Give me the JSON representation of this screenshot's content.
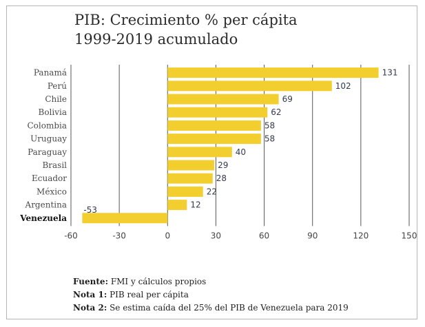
{
  "chart_data": {
    "type": "bar",
    "orientation": "horizontal",
    "title": "PIB: Crecimiento % per cápita",
    "subtitle": "1999-2019 acumulado",
    "categories": [
      "Panamá",
      "Perú",
      "Chile",
      "Bolivia",
      "Colombia",
      "Uruguay",
      "Paraguay",
      "Brasil",
      "Ecuador",
      "México",
      "Argentina",
      "Venezuela"
    ],
    "values": [
      131,
      102,
      69,
      62,
      58,
      58,
      40,
      29,
      28,
      22,
      12,
      -53
    ],
    "value_labels": [
      "131",
      "102",
      "69",
      "62",
      "58",
      "58",
      "40",
      "29",
      "28",
      "22",
      "12",
      "-53"
    ],
    "highlight": "Venezuela",
    "xlim": [
      -60,
      150
    ],
    "xticks": [
      -60,
      -30,
      0,
      30,
      60,
      90,
      120,
      150
    ],
    "xtick_labels": [
      "-60",
      "-30",
      "0",
      "30",
      "60",
      "90",
      "120",
      "150"
    ],
    "grid": "vertical",
    "bar_color": "#f2cf2e",
    "grid_color": "#555555",
    "label_color": "#333a4d"
  },
  "notes": [
    {
      "label": "Fuente:",
      "text": " FMI y cálculos propios"
    },
    {
      "label": "Nota 1:",
      "text": " PIB real per cápita"
    },
    {
      "label": "Nota 2:",
      "text": " Se estima caída del 25% del PIB de Venezuela para 2019"
    }
  ]
}
